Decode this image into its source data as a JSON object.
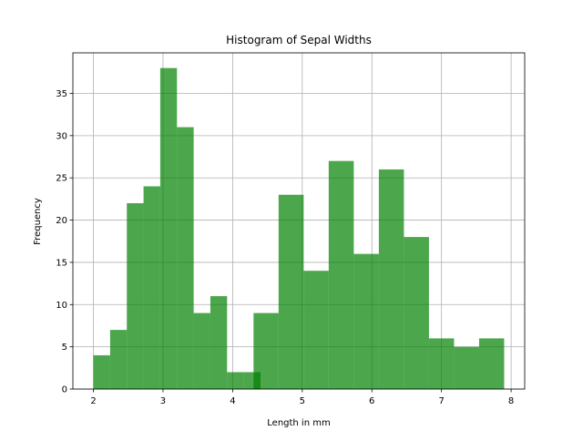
{
  "chart_data": {
    "type": "histogram",
    "title": "Histogram of Sepal Widths",
    "x_label": "Length in mm",
    "y_label": "Frequency",
    "series": [
      {
        "color": "#008000",
        "bins": [
          2.0,
          2.24,
          2.48,
          2.72,
          2.96,
          3.2,
          3.44,
          3.68,
          3.92,
          4.16,
          4.4
        ],
        "values": [
          4,
          7,
          22,
          24,
          38,
          31,
          9,
          11,
          2,
          2
        ]
      },
      {
        "color": "#008000",
        "bins": [
          4.3,
          4.66,
          5.02,
          5.38,
          5.74,
          6.1,
          6.46,
          6.82,
          7.18,
          7.54,
          7.9
        ],
        "values": [
          9,
          23,
          14,
          27,
          16,
          26,
          18,
          6,
          5,
          6
        ]
      }
    ],
    "alpha": 0.7,
    "xlim": [
      1.705,
      8.195
    ],
    "xticks": [
      2,
      3,
      4,
      5,
      6,
      7,
      8
    ],
    "ylim": [
      0,
      39.8
    ],
    "yticks": [
      0,
      5,
      10,
      15,
      20,
      25,
      30,
      35
    ],
    "grid": true
  }
}
